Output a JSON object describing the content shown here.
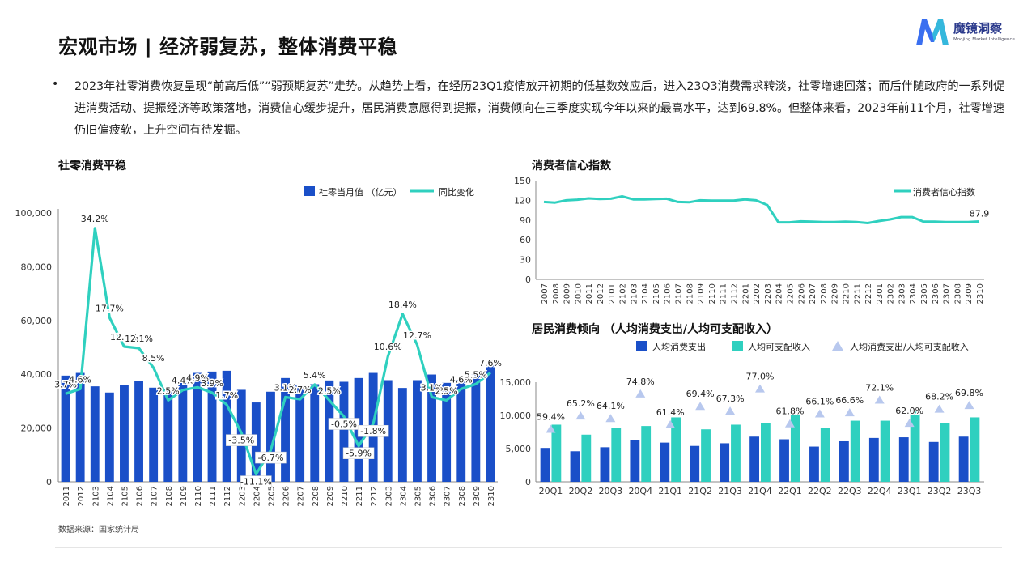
{
  "page": {
    "title": "宏观市场 | 经济弱复苏，整体消费平稳",
    "logo_name": "魔镜洞察",
    "logo_sub": "Moojing Market Intelligence",
    "paragraph": "2023年社零消费恢复呈现“前高后低”“弱预期复苏”走势。从趋势上看，在经历23Q1疫情放开初期的低基数效应后，进入23Q3消费需求转淡，社零增速回落；而后伴随政府的一系列促进消费活动、提振经济等政策落地，消费信心缓步提升，居民消费意愿得到提振，消费倾向在三季度实现今年以来的最高水平，达到69.8%。但整体来看，2023年前11个月，社零增速仍旧偏疲软，上升空间有待发掘。",
    "source": "数据来源：国家统计局"
  },
  "colors": {
    "bar_blue": "#1a4fc8",
    "line_teal": "#2fd0bf",
    "triangle": "#b8c8ee"
  },
  "chart_data": [
    {
      "type": "bar",
      "title": "社零消费平稳",
      "legend": [
        "社零当月值 （亿元）",
        "同比变化"
      ],
      "legend_position": "top-right",
      "categories": [
        "2011",
        "2012",
        "2103",
        "2104",
        "2105",
        "2106",
        "2107",
        "2108",
        "2109",
        "2110",
        "2111",
        "2112",
        "2203",
        "2204",
        "2205",
        "2206",
        "2207",
        "2208",
        "2209",
        "2210",
        "2211",
        "2212",
        "2303",
        "2304",
        "2305",
        "2306",
        "2307",
        "2308",
        "2309",
        "2310"
      ],
      "series": [
        {
          "name": "社零当月值 （亿元）",
          "type": "bar",
          "values": [
            39500,
            40500,
            35500,
            33200,
            35900,
            37600,
            35000,
            34600,
            36800,
            40500,
            41000,
            41300,
            34200,
            29500,
            33500,
            38600,
            35900,
            36300,
            37700,
            37200,
            38600,
            40500,
            37800,
            34900,
            37800,
            39900,
            36800,
            37900,
            39800,
            43300
          ]
        },
        {
          "name": "同比变化",
          "type": "line",
          "values": [
            3.7,
            4.6,
            34.2,
            17.7,
            12.4,
            12.1,
            8.5,
            2.5,
            4.4,
            4.9,
            3.9,
            1.7,
            -3.5,
            -11.1,
            -6.7,
            3.1,
            2.7,
            5.4,
            2.5,
            -0.5,
            -5.9,
            -1.8,
            10.6,
            18.4,
            12.7,
            3.1,
            2.5,
            4.6,
            5.5,
            7.6
          ]
        }
      ],
      "labels": [
        "3.7%",
        "4.6%",
        "34.2%",
        "17.7%",
        "12.4%",
        "12.1%",
        "8.5%",
        "2.5%",
        "4.4%",
        "4.9%",
        "3.9%",
        "1.7%",
        "-3.5%",
        "-11.1%",
        "-6.7%",
        "3.1%",
        "2.7%",
        "5.4%",
        "2.5%",
        "-0.5%",
        "-5.9%",
        "-1.8%",
        "10.6%",
        "18.4%",
        "12.7%",
        "3.1%",
        "2.5%",
        "4.6%",
        "5.5%",
        "7.6%"
      ],
      "yticks": [
        "0",
        "20,000",
        "40,000",
        "60,000",
        "80,000",
        "100,000"
      ],
      "ylim": [
        0,
        100000
      ]
    },
    {
      "type": "line",
      "title": "消费者信心指数",
      "legend": [
        "消费者信心指数"
      ],
      "legend_position": "top-right",
      "categories": [
        "2007",
        "2008",
        "2009",
        "2010",
        "2011",
        "2012",
        "2101",
        "2102",
        "2103",
        "2104",
        "2105",
        "2106",
        "2107",
        "2108",
        "2109",
        "2110",
        "2111",
        "2112",
        "2201",
        "2202",
        "2203",
        "2204",
        "2205",
        "2206",
        "2207",
        "2208",
        "2209",
        "2210",
        "2211",
        "2212",
        "2301",
        "2302",
        "2303",
        "2304",
        "2305",
        "2306",
        "2307",
        "2308",
        "2309",
        "2310"
      ],
      "series": [
        {
          "name": "消费者信心指数",
          "values": [
            117.5,
            116.5,
            120,
            121,
            123,
            122,
            122.5,
            126,
            121.5,
            121.5,
            122,
            122.5,
            117.5,
            117,
            120,
            119.5,
            119.5,
            119.5,
            121.5,
            120,
            113,
            86.5,
            86.5,
            88,
            87.5,
            87,
            87,
            87.5,
            87,
            85.5,
            88.5,
            91,
            94.5,
            94.5,
            87.5,
            87.5,
            87,
            87,
            87,
            87.9
          ]
        }
      ],
      "last_label": "87.9",
      "yticks": [
        "0",
        "30",
        "60",
        "90",
        "120",
        "150"
      ],
      "ylim": [
        0,
        150
      ]
    },
    {
      "type": "bar",
      "title": "居民消费倾向 （人均消费支出/人均可支配收入）",
      "legend": [
        "人均消费支出",
        "人均可支配收入",
        "人均消费支出/人均可支配收入"
      ],
      "legend_position": "top",
      "categories": [
        "20Q1",
        "20Q2",
        "20Q3",
        "20Q4",
        "21Q1",
        "21Q2",
        "21Q3",
        "21Q4",
        "22Q1",
        "22Q2",
        "22Q3",
        "22Q4",
        "23Q1",
        "23Q2",
        "23Q3"
      ],
      "series": [
        {
          "name": "人均消费支出",
          "values": [
            5100,
            4600,
            5200,
            6300,
            5900,
            5400,
            5800,
            6800,
            6400,
            5300,
            6100,
            6600,
            6700,
            6000,
            6800
          ]
        },
        {
          "name": "人均可支配收入",
          "values": [
            8600,
            7100,
            8100,
            8400,
            9700,
            7900,
            8600,
            8800,
            10300,
            8100,
            9200,
            9200,
            10800,
            8800,
            9700
          ]
        },
        {
          "name": "人均消费支出/人均可支配收入",
          "values": [
            59.4,
            65.2,
            64.1,
            74.8,
            61.4,
            69.4,
            67.3,
            77.0,
            61.8,
            66.1,
            66.6,
            72.1,
            62.0,
            68.2,
            69.8
          ]
        }
      ],
      "labels": [
        "59.4%",
        "65.2%",
        "64.1%",
        "74.8%",
        "61.4%",
        "69.4%",
        "67.3%",
        "77.0%",
        "61.8%",
        "66.1%",
        "66.6%",
        "72.1%",
        "62.0%",
        "68.2%",
        "69.8%"
      ],
      "yticks": [
        "0",
        "5,000",
        "10,000",
        "15,000"
      ],
      "ylim": [
        0,
        15000
      ]
    }
  ]
}
